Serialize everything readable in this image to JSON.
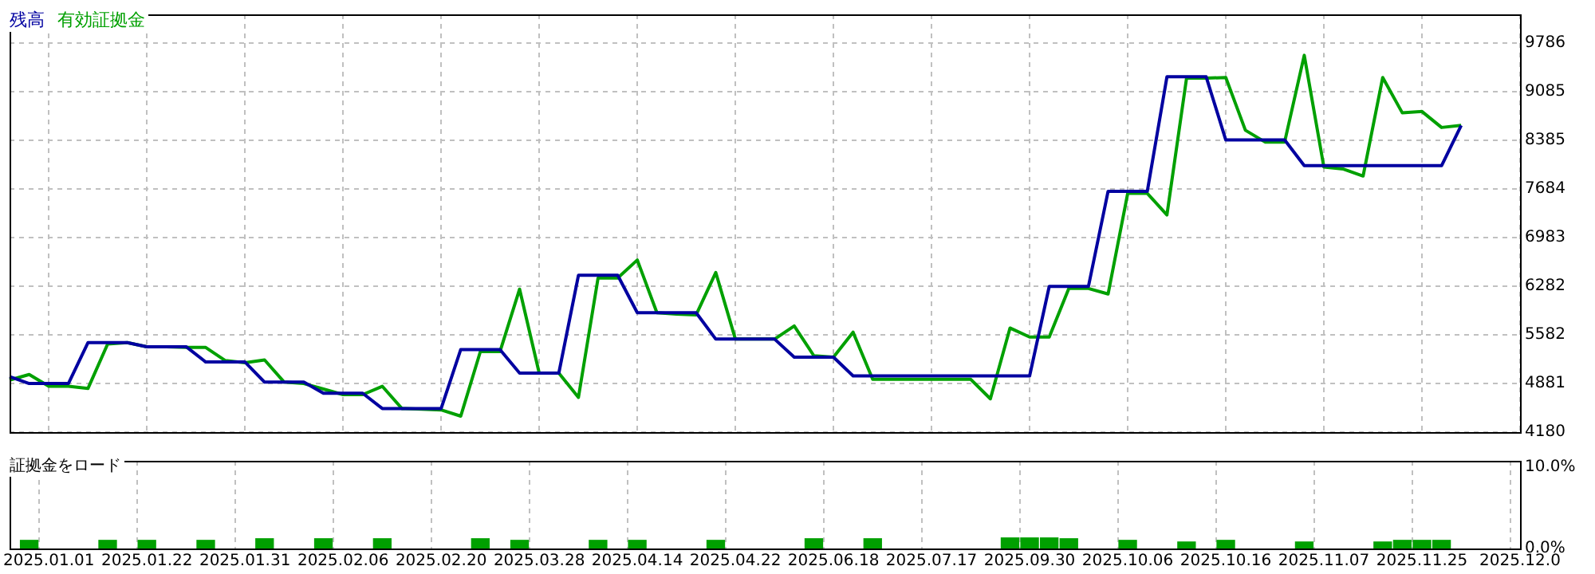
{
  "chart_data": [
    {
      "type": "line",
      "legend": "top left",
      "grid": true,
      "tick_labels": "y",
      "ylim": [
        4180,
        10200
      ],
      "categories": [
        null,
        null,
        "2025.01.01",
        null,
        null,
        null,
        null,
        "2025.01.22",
        null,
        null,
        null,
        null,
        "2025.01.31",
        null,
        null,
        null,
        null,
        "2025.02.06",
        null,
        null,
        null,
        null,
        "2025.02.20",
        null,
        null,
        null,
        null,
        "2025.03.28",
        null,
        null,
        null,
        null,
        "2025.04.14",
        null,
        null,
        null,
        null,
        "2025.04.22",
        null,
        null,
        null,
        null,
        "2025.06.18",
        null,
        null,
        null,
        null,
        "2025.07.17",
        null,
        null,
        null,
        null,
        "2025.09.30",
        null,
        null,
        null,
        null,
        "2025.10.06",
        null,
        null,
        null,
        null,
        "2025.10.16",
        null,
        null,
        null,
        null,
        "2025.11.07",
        null,
        null,
        null,
        null,
        "2025.11.25",
        null,
        null,
        null,
        null,
        "2025.12.0"
      ],
      "yticks": [
        4180,
        4881,
        5582,
        6282,
        6983,
        7684,
        8385,
        9085,
        9786
      ],
      "series": [
        {
          "name": "残高",
          "color": "#0000a0",
          "values": [
            4980,
            4880,
            4880,
            4880,
            5470,
            5470,
            5470,
            5410,
            5410,
            5410,
            5190,
            5190,
            5190,
            4900,
            4900,
            4900,
            4740,
            4740,
            4740,
            4520,
            4520,
            4520,
            4520,
            5370,
            5370,
            5370,
            5030,
            5030,
            5030,
            6440,
            6440,
            6440,
            5900,
            5900,
            5900,
            5900,
            5520,
            5520,
            5520,
            5520,
            5260,
            5260,
            5260,
            4990,
            4990,
            4990,
            4990,
            4990,
            4990,
            4990,
            4990,
            4990,
            4990,
            6280,
            6280,
            6280,
            7650,
            7650,
            7650,
            9300,
            9300,
            9300,
            8390,
            8390,
            8390,
            8390,
            8020,
            8020,
            8020,
            8020,
            8020,
            8020,
            8020,
            8020,
            8600,
            null,
            null,
            null
          ]
        },
        {
          "name": "有効証拠金",
          "color": "#00a000",
          "values": [
            4930,
            5010,
            4840,
            4840,
            4810,
            5450,
            5470,
            5410,
            5410,
            5400,
            5400,
            5210,
            5180,
            5220,
            4900,
            4880,
            4800,
            4720,
            4720,
            4840,
            4520,
            4510,
            4500,
            4410,
            5340,
            5340,
            6240,
            5030,
            5030,
            4680,
            6400,
            6400,
            6660,
            5900,
            5880,
            5870,
            6480,
            5520,
            5520,
            5520,
            5710,
            5280,
            5260,
            5620,
            4940,
            4940,
            4940,
            4940,
            4940,
            4940,
            4660,
            5680,
            5550,
            5550,
            6250,
            6250,
            6170,
            7620,
            7620,
            7310,
            9280,
            9280,
            9290,
            8530,
            8360,
            8360,
            9610,
            8000,
            7970,
            7870,
            9290,
            8780,
            8800,
            8570,
            8600,
            null,
            null,
            null
          ]
        }
      ]
    },
    {
      "type": "bar",
      "title": "証拠金をロード",
      "grid": "x",
      "color": "#00a000",
      "ylim": [
        0,
        10.8
      ],
      "categories": [
        null,
        null,
        "2025.01.01",
        null,
        null,
        null,
        null,
        "2025.01.22",
        null,
        null,
        null,
        null,
        "2025.01.31",
        null,
        null,
        null,
        null,
        "2025.02.06",
        null,
        null,
        null,
        null,
        "2025.02.20",
        null,
        null,
        null,
        null,
        "2025.03.28",
        null,
        null,
        null,
        null,
        "2025.04.14",
        null,
        null,
        null,
        null,
        "2025.04.22",
        null,
        null,
        null,
        null,
        "2025.06.18",
        null,
        null,
        null,
        null,
        "2025.07.17",
        null,
        null,
        null,
        null,
        "2025.09.30",
        null,
        null,
        null,
        null,
        "2025.10.06",
        null,
        null,
        null,
        null,
        "2025.10.16",
        null,
        null,
        null,
        null,
        "2025.11.07",
        null,
        null,
        null,
        null,
        "2025.11.25",
        null,
        null,
        null,
        null,
        "2025.12.0"
      ],
      "yticks": [
        {
          "value": 0,
          "label": "0.0%"
        },
        {
          "value": 10,
          "label": "10.0%"
        }
      ],
      "values": [
        null,
        1.0,
        null,
        null,
        null,
        1.0,
        null,
        1.0,
        null,
        null,
        1.0,
        null,
        null,
        1.2,
        null,
        null,
        1.2,
        null,
        null,
        1.2,
        null,
        null,
        null,
        null,
        1.2,
        null,
        1.0,
        null,
        null,
        null,
        1.0,
        null,
        1.0,
        null,
        null,
        null,
        1.0,
        null,
        null,
        null,
        null,
        1.2,
        null,
        null,
        1.2,
        null,
        null,
        null,
        null,
        null,
        null,
        1.3,
        1.3,
        1.3,
        1.2,
        null,
        null,
        1.0,
        null,
        null,
        0.8,
        null,
        1.0,
        null,
        null,
        null,
        0.8,
        null,
        null,
        null,
        0.8,
        1.0,
        1.0,
        1.0,
        null,
        null,
        null,
        null
      ]
    }
  ]
}
